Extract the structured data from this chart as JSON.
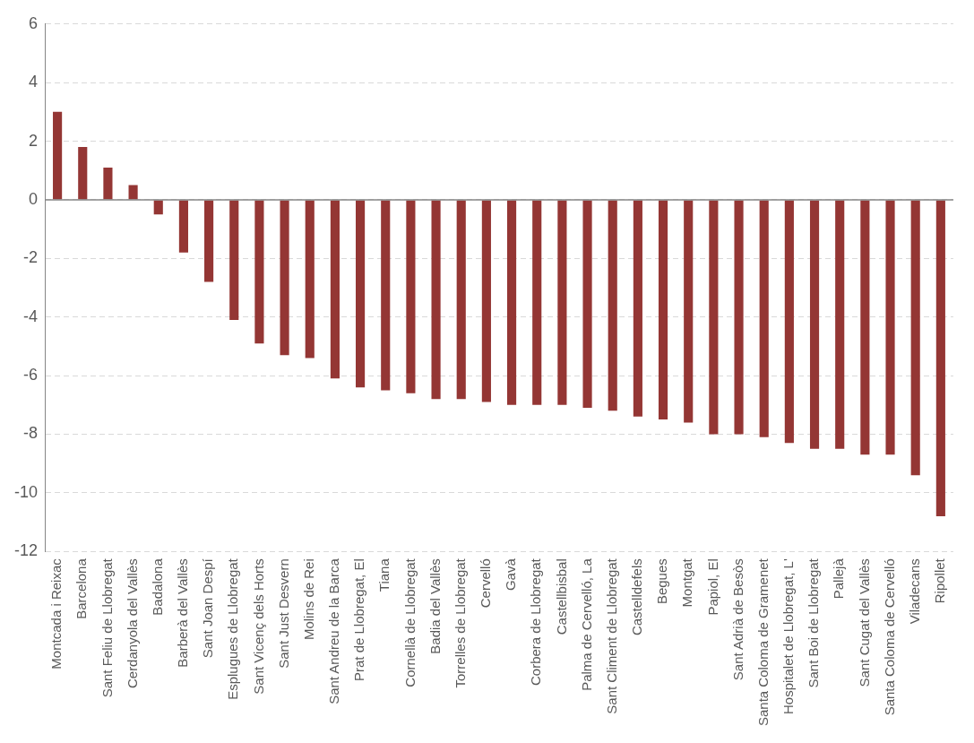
{
  "chart_data": {
    "type": "bar",
    "categories": [
      "Montcada i Reixac",
      "Barcelona",
      "Sant Feliu de Llobregat",
      "Cerdanyola del Vallès",
      "Badalona",
      "Barberà del Vallès",
      "Sant Joan Despí",
      "Esplugues de Llobregat",
      "Sant Vicenç dels Horts",
      "Sant Just Desvern",
      "Molins de Rei",
      "Sant Andreu de la Barca",
      "Prat de Llobregat, El",
      "Tiana",
      "Cornellà de Llobregat",
      "Badia del Vallès",
      "Torrelles de Llobregat",
      "Cervelló",
      "Gavà",
      "Corbera de Llobregat",
      "Castellbisbal",
      "Palma de Cervelló, La",
      "Sant Climent de Llobregat",
      "Castelldefels",
      "Begues",
      "Montgat",
      "Papiol, El",
      "Sant Adrià de Besòs",
      "Santa Coloma de Gramenet",
      "Hospitalet de Llobregat, L'",
      "Sant Boi de Llobregat",
      "Pallejà",
      "Sant Cugat del Vallès",
      "Santa Coloma de Cervelló",
      "Viladecans",
      "Ripollet"
    ],
    "values": [
      3.0,
      1.8,
      1.1,
      0.5,
      -0.5,
      -1.8,
      -2.8,
      -4.1,
      -4.9,
      -5.3,
      -5.4,
      -6.1,
      -6.4,
      -6.5,
      -6.6,
      -6.8,
      -6.8,
      -6.9,
      -7.0,
      -7.0,
      -7.0,
      -7.1,
      -7.2,
      -7.4,
      -7.5,
      -7.6,
      -8.0,
      -8.0,
      -8.1,
      -8.3,
      -8.5,
      -8.5,
      -8.7,
      -8.7,
      -9.4,
      -10.8
    ],
    "color": "#943634",
    "ylim": [
      -12,
      6
    ],
    "yticks": [
      -12,
      -10,
      -8,
      -6,
      -4,
      -2,
      0,
      2,
      4,
      6
    ],
    "grid": "y"
  }
}
